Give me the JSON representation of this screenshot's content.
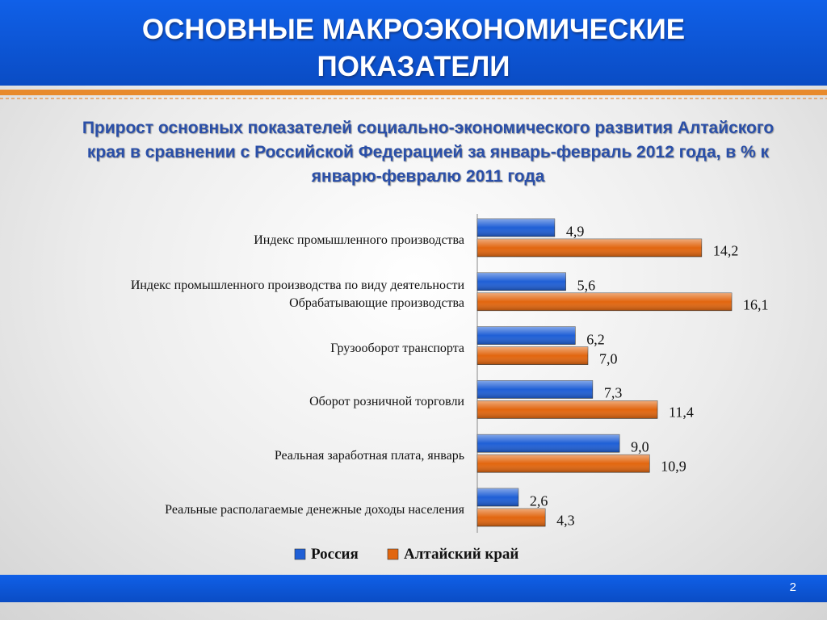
{
  "header": {
    "title": "ОСНОВНЫЕ МАКРОЭКОНОМИЧЕСКИЕ ПОКАЗАТЕЛИ"
  },
  "page_number": "2",
  "chart_data": {
    "type": "bar",
    "orientation": "horizontal",
    "title": "Прирост основных показателей социально-экономического развития Алтайского края в сравнении с Российской Федерацией за январь-февраль 2012 года, в % к январю-февралю 2011 года",
    "categories": [
      "Индекс промышленного производства",
      "Индекс промышленного производства по виду деятельности Обрабатывающие производства",
      "Грузооборот транспорта",
      "Оборот розничной торговли",
      "Реальная заработная плата, январь",
      "Реальные располагаемые денежные доходы населения"
    ],
    "series": [
      {
        "name": "Россия",
        "color": "#1f5fd6",
        "values": [
          4.9,
          5.6,
          6.2,
          7.3,
          9.0,
          2.6
        ],
        "value_labels": [
          "4,9",
          "5,6",
          "6,2",
          "7,3",
          "9,0",
          "2,6"
        ]
      },
      {
        "name": "Алтайский край",
        "color": "#e2660f",
        "values": [
          14.2,
          16.1,
          7.0,
          11.4,
          10.9,
          4.3
        ],
        "value_labels": [
          "14,2",
          "16,1",
          "7,0",
          "11,4",
          "10,9",
          "4,3"
        ]
      }
    ],
    "legend": "bottom"
  }
}
